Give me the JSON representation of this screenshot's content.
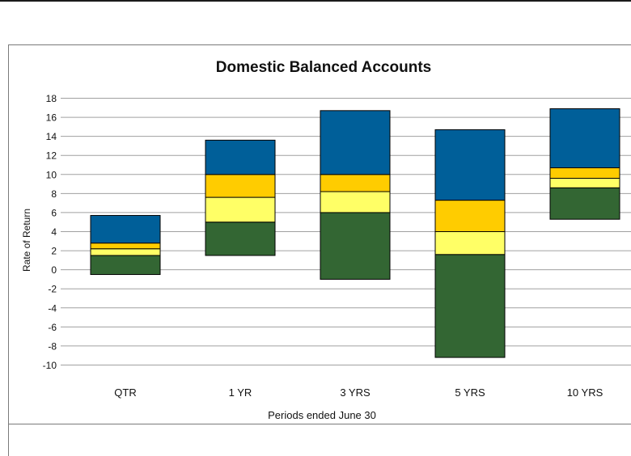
{
  "chart_data": {
    "type": "bar",
    "title": "Domestic Balanced Accounts",
    "xlabel": "Periods ended June 30",
    "ylabel": "Rate of Return",
    "ylim": [
      -10,
      18
    ],
    "yticks": [
      18,
      16,
      14,
      12,
      10,
      8,
      6,
      4,
      2,
      0,
      -2,
      -4,
      -6,
      -8,
      -10
    ],
    "grid": true,
    "categories": [
      "QTR",
      "1 YR",
      "3 YRS",
      "5 YRS",
      "10 YRS"
    ],
    "series": [
      {
        "color": "#336633",
        "values": [
          [
            -0.5,
            1.5
          ],
          [
            1.5,
            5.0
          ],
          [
            -1.0,
            6.0
          ],
          [
            -9.2,
            1.6
          ],
          [
            5.3,
            8.6
          ]
        ]
      },
      {
        "color": "#ffff66",
        "values": [
          [
            1.5,
            2.2
          ],
          [
            5.0,
            7.6
          ],
          [
            6.0,
            8.2
          ],
          [
            1.6,
            4.0
          ],
          [
            8.6,
            9.6
          ]
        ]
      },
      {
        "color": "#ffcc00",
        "values": [
          [
            2.2,
            2.8
          ],
          [
            7.6,
            10.0
          ],
          [
            8.2,
            10.0
          ],
          [
            4.0,
            7.3
          ],
          [
            9.6,
            10.7
          ]
        ]
      },
      {
        "color": "#005f99",
        "values": [
          [
            2.8,
            5.7
          ],
          [
            10.0,
            13.6
          ],
          [
            10.0,
            16.7
          ],
          [
            7.3,
            14.7
          ],
          [
            10.7,
            16.9
          ]
        ]
      }
    ]
  }
}
